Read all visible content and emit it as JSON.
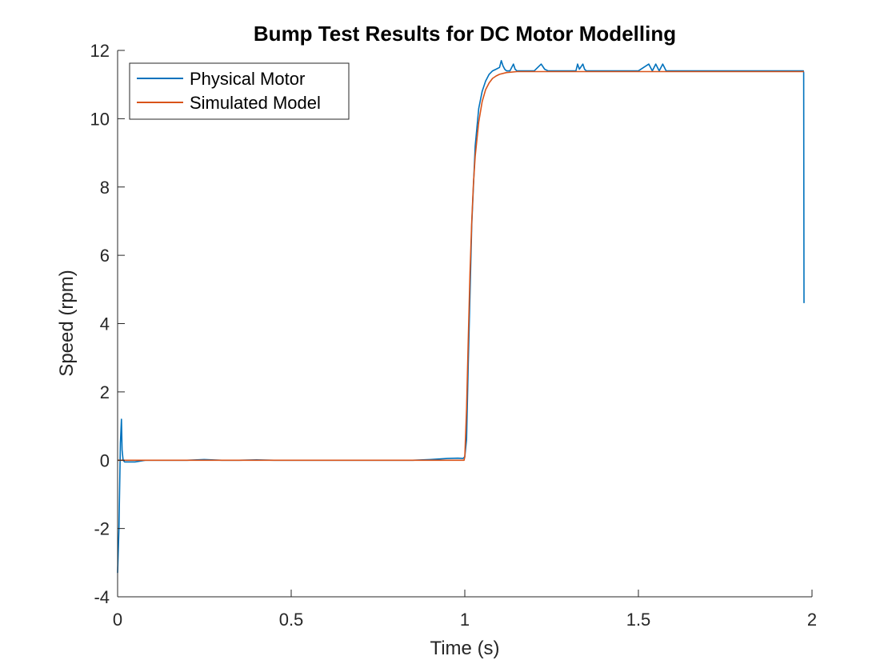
{
  "chart_data": {
    "type": "line",
    "title": "Bump Test Results for DC Motor Modelling",
    "xlabel": "Time (s)",
    "ylabel": "Speed (rpm)",
    "xlim": [
      0,
      2
    ],
    "ylim": [
      -4,
      12
    ],
    "x_ticks": [
      0,
      0.5,
      1,
      1.5,
      2
    ],
    "x_tick_labels": [
      "0",
      "0.5",
      "1",
      "1.5",
      "2"
    ],
    "y_ticks": [
      -4,
      -2,
      0,
      2,
      4,
      6,
      8,
      10,
      12
    ],
    "y_tick_labels": [
      "-4",
      "-2",
      "0",
      "2",
      "4",
      "6",
      "8",
      "10",
      "12"
    ],
    "grid": false,
    "legend": {
      "placement": "top-left",
      "entries": [
        "Physical Motor",
        "Simulated Model"
      ]
    },
    "series": [
      {
        "name": "Physical Motor",
        "color": "#0072BD",
        "x": [
          0,
          0.004,
          0.008,
          0.011,
          0.013,
          0.016,
          0.02,
          0.03,
          0.05,
          0.08,
          0.1,
          0.15,
          0.2,
          0.25,
          0.3,
          0.35,
          0.4,
          0.45,
          0.5,
          0.55,
          0.6,
          0.65,
          0.7,
          0.75,
          0.8,
          0.85,
          0.9,
          0.95,
          0.98,
          0.995,
          1.0,
          1.005,
          1.01,
          1.02,
          1.03,
          1.04,
          1.05,
          1.06,
          1.07,
          1.08,
          1.09,
          1.1,
          1.105,
          1.11,
          1.115,
          1.12,
          1.13,
          1.14,
          1.145,
          1.15,
          1.16,
          1.18,
          1.2,
          1.22,
          1.23,
          1.24,
          1.26,
          1.28,
          1.3,
          1.32,
          1.325,
          1.33,
          1.34,
          1.345,
          1.35,
          1.38,
          1.4,
          1.45,
          1.48,
          1.5,
          1.53,
          1.54,
          1.55,
          1.56,
          1.57,
          1.58,
          1.6,
          1.65,
          1.7,
          1.75,
          1.8,
          1.85,
          1.9,
          1.95,
          1.97,
          1.975,
          1.976,
          1.977
        ],
        "y": [
          -3.3,
          -2.0,
          0.5,
          1.2,
          0.3,
          0.0,
          -0.05,
          -0.05,
          -0.05,
          0.0,
          0.0,
          0.0,
          0.0,
          0.02,
          0.0,
          0.0,
          0.01,
          0.0,
          0.0,
          0.0,
          0.0,
          0.0,
          0.0,
          0.0,
          0.0,
          0.0,
          0.02,
          0.05,
          0.06,
          0.05,
          0.1,
          0.6,
          2.8,
          6.9,
          9.2,
          10.3,
          10.8,
          11.1,
          11.3,
          11.4,
          11.45,
          11.5,
          11.7,
          11.55,
          11.45,
          11.4,
          11.4,
          11.6,
          11.45,
          11.4,
          11.4,
          11.4,
          11.4,
          11.6,
          11.45,
          11.4,
          11.4,
          11.4,
          11.4,
          11.4,
          11.6,
          11.45,
          11.6,
          11.45,
          11.4,
          11.4,
          11.4,
          11.4,
          11.4,
          11.4,
          11.6,
          11.4,
          11.6,
          11.4,
          11.6,
          11.4,
          11.4,
          11.4,
          11.4,
          11.4,
          11.4,
          11.4,
          11.4,
          11.4,
          11.4,
          11.4,
          11.35,
          4.6
        ]
      },
      {
        "name": "Simulated Model",
        "color": "#D95319",
        "x": [
          0,
          0.2,
          0.4,
          0.6,
          0.8,
          0.95,
          0.998,
          1.0,
          1.005,
          1.01,
          1.015,
          1.02,
          1.025,
          1.03,
          1.04,
          1.05,
          1.06,
          1.07,
          1.08,
          1.09,
          1.1,
          1.12,
          1.15,
          1.2,
          1.3,
          1.5,
          1.7,
          1.9,
          1.977
        ],
        "y": [
          0,
          0,
          0,
          0,
          0,
          0,
          0,
          0.1,
          1.5,
          3.5,
          5.5,
          7.0,
          8.1,
          8.9,
          9.9,
          10.5,
          10.85,
          11.05,
          11.18,
          11.25,
          11.3,
          11.35,
          11.38,
          11.38,
          11.38,
          11.38,
          11.38,
          11.38,
          11.38
        ]
      }
    ]
  }
}
